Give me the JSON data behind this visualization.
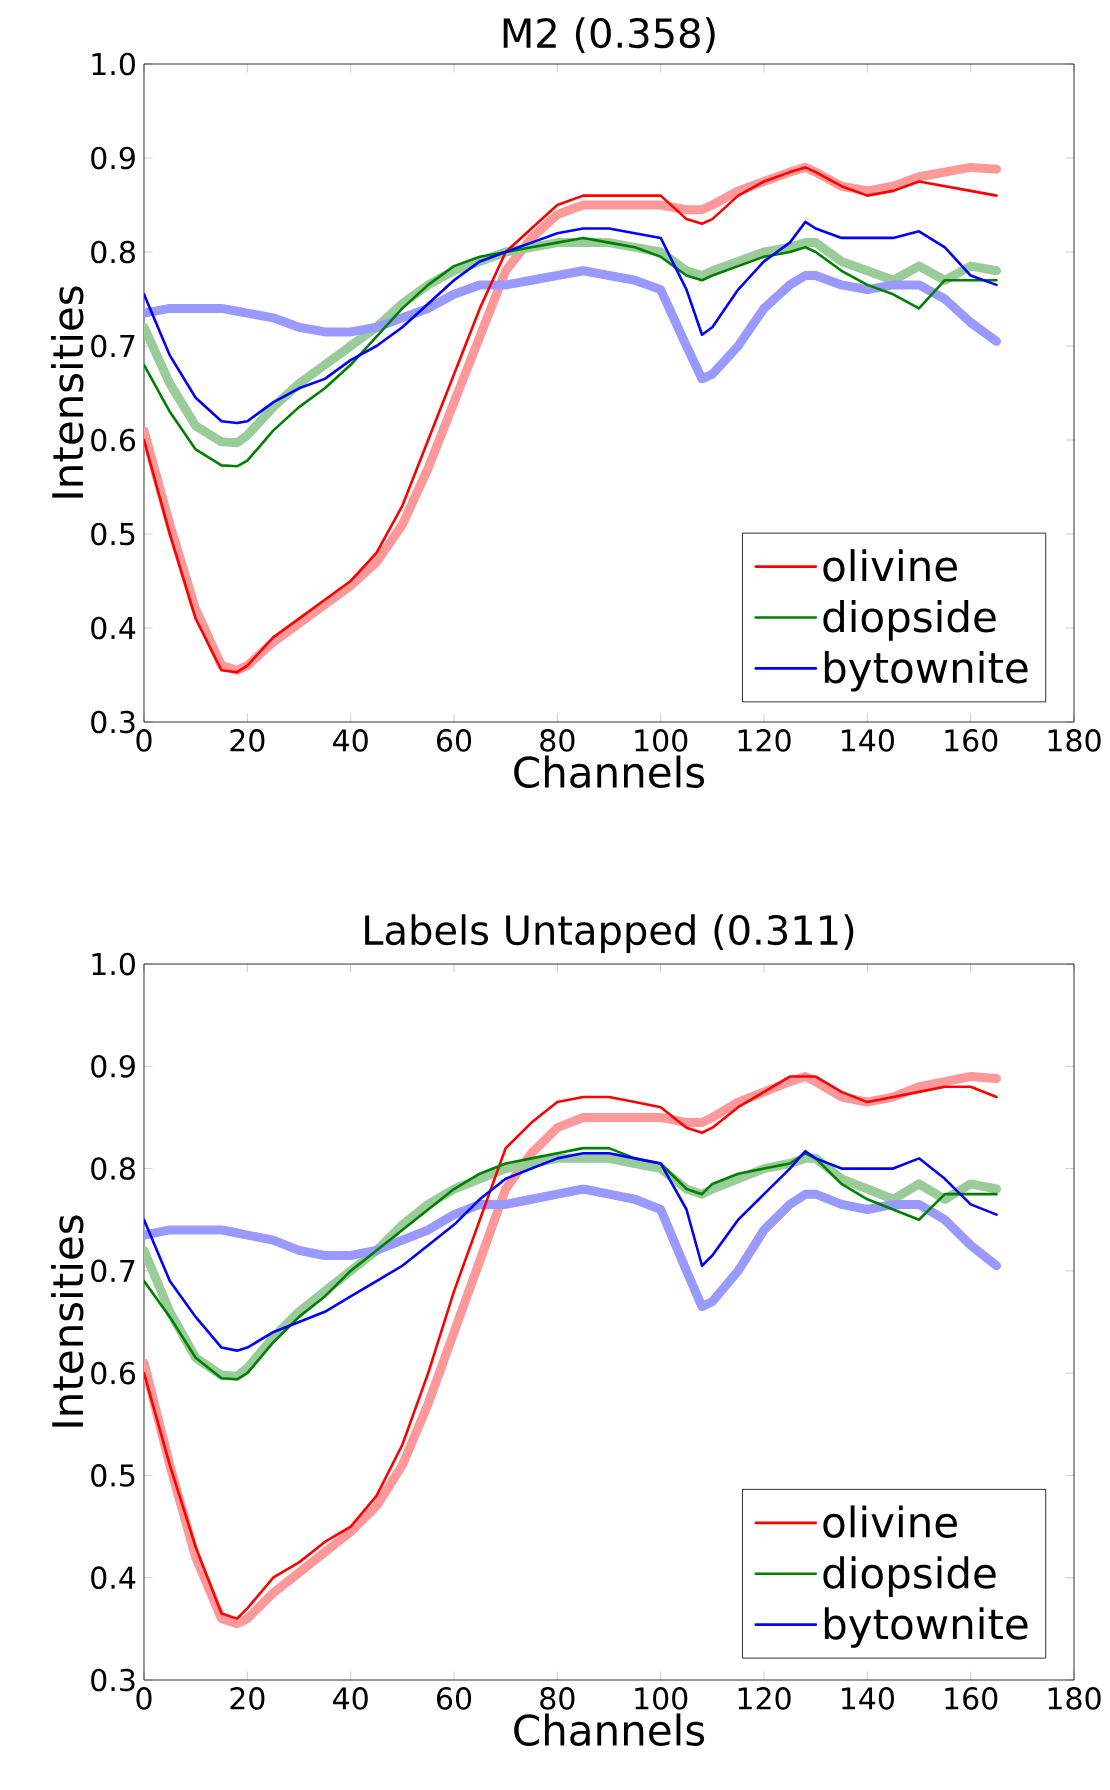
{
  "chart_data": [
    {
      "type": "line",
      "title": "M2 (0.358)",
      "xlabel": "Channels",
      "ylabel": "Intensities",
      "xlim": [
        0,
        180
      ],
      "ylim": [
        0.3,
        1.0
      ],
      "xticks": [
        0,
        20,
        40,
        60,
        80,
        100,
        120,
        140,
        160,
        180
      ],
      "yticks": [
        0.3,
        0.4,
        0.5,
        0.6,
        0.7,
        0.8,
        0.9,
        {
          "value": 1,
          "label": "1.0"
        }
      ],
      "legend": "bottom right",
      "x": [
        0,
        5,
        10,
        15,
        18,
        20,
        25,
        30,
        35,
        40,
        45,
        50,
        55,
        60,
        65,
        70,
        75,
        80,
        85,
        90,
        95,
        100,
        105,
        108,
        110,
        115,
        120,
        125,
        128,
        130,
        135,
        140,
        145,
        150,
        155,
        160,
        165
      ],
      "series": [
        {
          "color": "#ff9999",
          "values": [
            0.61,
            0.51,
            0.42,
            0.36,
            0.355,
            0.36,
            0.385,
            0.405,
            0.425,
            0.445,
            0.47,
            0.51,
            0.57,
            0.64,
            0.71,
            0.78,
            0.815,
            0.84,
            0.85,
            0.85,
            0.85,
            0.85,
            0.845,
            0.845,
            0.85,
            0.865,
            0.875,
            0.885,
            0.89,
            0.885,
            0.87,
            0.865,
            0.87,
            0.88,
            0.885,
            0.89,
            0.888
          ]
        },
        {
          "color": "#99cc99",
          "values": [
            0.72,
            0.66,
            0.615,
            0.598,
            0.597,
            0.605,
            0.635,
            0.66,
            0.68,
            0.7,
            0.72,
            0.745,
            0.765,
            0.78,
            0.79,
            0.8,
            0.805,
            0.81,
            0.81,
            0.81,
            0.805,
            0.8,
            0.78,
            0.775,
            0.78,
            0.79,
            0.8,
            0.805,
            0.81,
            0.81,
            0.79,
            0.78,
            0.77,
            0.785,
            0.77,
            0.785,
            0.78
          ]
        },
        {
          "color": "#9999ff",
          "values": [
            0.735,
            0.74,
            0.74,
            0.74,
            0.737,
            0.735,
            0.73,
            0.72,
            0.715,
            0.715,
            0.72,
            0.73,
            0.74,
            0.755,
            0.765,
            0.765,
            0.77,
            0.775,
            0.78,
            0.775,
            0.77,
            0.76,
            0.7,
            0.665,
            0.67,
            0.7,
            0.74,
            0.765,
            0.775,
            0.775,
            0.765,
            0.76,
            0.765,
            0.765,
            0.75,
            0.725,
            0.705
          ]
        },
        {
          "name": "olivine",
          "color": "#ff0000",
          "values": [
            0.6,
            0.5,
            0.41,
            0.355,
            0.353,
            0.36,
            0.39,
            0.41,
            0.43,
            0.45,
            0.48,
            0.53,
            0.6,
            0.67,
            0.74,
            0.8,
            0.825,
            0.85,
            0.86,
            0.86,
            0.86,
            0.86,
            0.835,
            0.83,
            0.835,
            0.86,
            0.875,
            0.885,
            0.89,
            0.885,
            0.87,
            0.86,
            0.865,
            0.875,
            0.87,
            0.865,
            0.86
          ]
        },
        {
          "name": "diopside",
          "color": "#008000",
          "values": [
            0.68,
            0.63,
            0.59,
            0.573,
            0.572,
            0.578,
            0.61,
            0.635,
            0.655,
            0.68,
            0.71,
            0.74,
            0.765,
            0.785,
            0.795,
            0.8,
            0.805,
            0.81,
            0.815,
            0.81,
            0.805,
            0.795,
            0.775,
            0.77,
            0.775,
            0.785,
            0.795,
            0.8,
            0.805,
            0.8,
            0.78,
            0.765,
            0.755,
            0.74,
            0.77,
            0.77,
            0.77
          ]
        },
        {
          "name": "bytownite",
          "color": "#0000ff",
          "values": [
            0.755,
            0.69,
            0.645,
            0.62,
            0.618,
            0.62,
            0.64,
            0.655,
            0.665,
            0.685,
            0.7,
            0.72,
            0.745,
            0.77,
            0.79,
            0.8,
            0.81,
            0.82,
            0.825,
            0.825,
            0.82,
            0.815,
            0.76,
            0.712,
            0.72,
            0.76,
            0.79,
            0.81,
            0.832,
            0.825,
            0.815,
            0.815,
            0.815,
            0.822,
            0.805,
            0.775,
            0.765
          ]
        }
      ]
    },
    {
      "type": "line",
      "title": "Labels Untapped (0.311)",
      "xlabel": "Channels",
      "ylabel": "Intensities",
      "xlim": [
        0,
        180
      ],
      "ylim": [
        0.3,
        1.0
      ],
      "xticks": [
        0,
        20,
        40,
        60,
        80,
        100,
        120,
        140,
        160,
        180
      ],
      "yticks": [
        0.3,
        0.4,
        0.5,
        0.6,
        0.7,
        0.8,
        0.9,
        {
          "value": 1,
          "label": "1.0"
        }
      ],
      "legend": "bottom right",
      "x": [
        0,
        5,
        10,
        15,
        18,
        20,
        25,
        30,
        35,
        40,
        45,
        50,
        55,
        60,
        65,
        70,
        75,
        80,
        85,
        90,
        95,
        100,
        105,
        108,
        110,
        115,
        120,
        125,
        128,
        130,
        135,
        140,
        145,
        150,
        155,
        160,
        165
      ],
      "series": [
        {
          "color": "#ff9999",
          "values": [
            0.61,
            0.51,
            0.42,
            0.36,
            0.355,
            0.36,
            0.385,
            0.405,
            0.425,
            0.445,
            0.47,
            0.51,
            0.57,
            0.64,
            0.71,
            0.78,
            0.815,
            0.84,
            0.85,
            0.85,
            0.85,
            0.85,
            0.845,
            0.845,
            0.85,
            0.865,
            0.875,
            0.885,
            0.89,
            0.885,
            0.87,
            0.865,
            0.87,
            0.88,
            0.885,
            0.89,
            0.888
          ]
        },
        {
          "color": "#99cc99",
          "values": [
            0.72,
            0.66,
            0.615,
            0.598,
            0.597,
            0.605,
            0.635,
            0.66,
            0.68,
            0.7,
            0.72,
            0.745,
            0.765,
            0.78,
            0.79,
            0.8,
            0.805,
            0.81,
            0.81,
            0.81,
            0.805,
            0.8,
            0.78,
            0.775,
            0.78,
            0.79,
            0.8,
            0.805,
            0.81,
            0.81,
            0.79,
            0.78,
            0.77,
            0.785,
            0.77,
            0.785,
            0.78
          ]
        },
        {
          "color": "#9999ff",
          "values": [
            0.735,
            0.74,
            0.74,
            0.74,
            0.737,
            0.735,
            0.73,
            0.72,
            0.715,
            0.715,
            0.72,
            0.73,
            0.74,
            0.755,
            0.765,
            0.765,
            0.77,
            0.775,
            0.78,
            0.775,
            0.77,
            0.76,
            0.7,
            0.665,
            0.67,
            0.7,
            0.74,
            0.765,
            0.775,
            0.775,
            0.765,
            0.76,
            0.765,
            0.765,
            0.75,
            0.725,
            0.705
          ]
        },
        {
          "name": "olivine",
          "color": "#ff0000",
          "values": [
            0.6,
            0.51,
            0.43,
            0.365,
            0.36,
            0.37,
            0.4,
            0.415,
            0.435,
            0.45,
            0.48,
            0.53,
            0.6,
            0.68,
            0.75,
            0.82,
            0.845,
            0.865,
            0.87,
            0.87,
            0.865,
            0.86,
            0.84,
            0.835,
            0.84,
            0.86,
            0.875,
            0.89,
            0.89,
            0.89,
            0.875,
            0.865,
            0.87,
            0.875,
            0.88,
            0.88,
            0.87
          ]
        },
        {
          "name": "diopside",
          "color": "#008000",
          "values": [
            0.69,
            0.655,
            0.615,
            0.595,
            0.594,
            0.6,
            0.63,
            0.655,
            0.675,
            0.7,
            0.72,
            0.74,
            0.76,
            0.78,
            0.795,
            0.805,
            0.81,
            0.815,
            0.82,
            0.82,
            0.81,
            0.805,
            0.78,
            0.775,
            0.785,
            0.795,
            0.8,
            0.805,
            0.815,
            0.81,
            0.785,
            0.77,
            0.76,
            0.75,
            0.775,
            0.775,
            0.775
          ]
        },
        {
          "name": "bytownite",
          "color": "#0000ff",
          "values": [
            0.75,
            0.69,
            0.655,
            0.625,
            0.622,
            0.625,
            0.64,
            0.65,
            0.66,
            0.675,
            0.69,
            0.705,
            0.725,
            0.745,
            0.77,
            0.79,
            0.8,
            0.81,
            0.815,
            0.815,
            0.81,
            0.805,
            0.76,
            0.705,
            0.715,
            0.75,
            0.775,
            0.8,
            0.817,
            0.81,
            0.8,
            0.8,
            0.8,
            0.81,
            0.79,
            0.765,
            0.755
          ]
        }
      ]
    }
  ]
}
